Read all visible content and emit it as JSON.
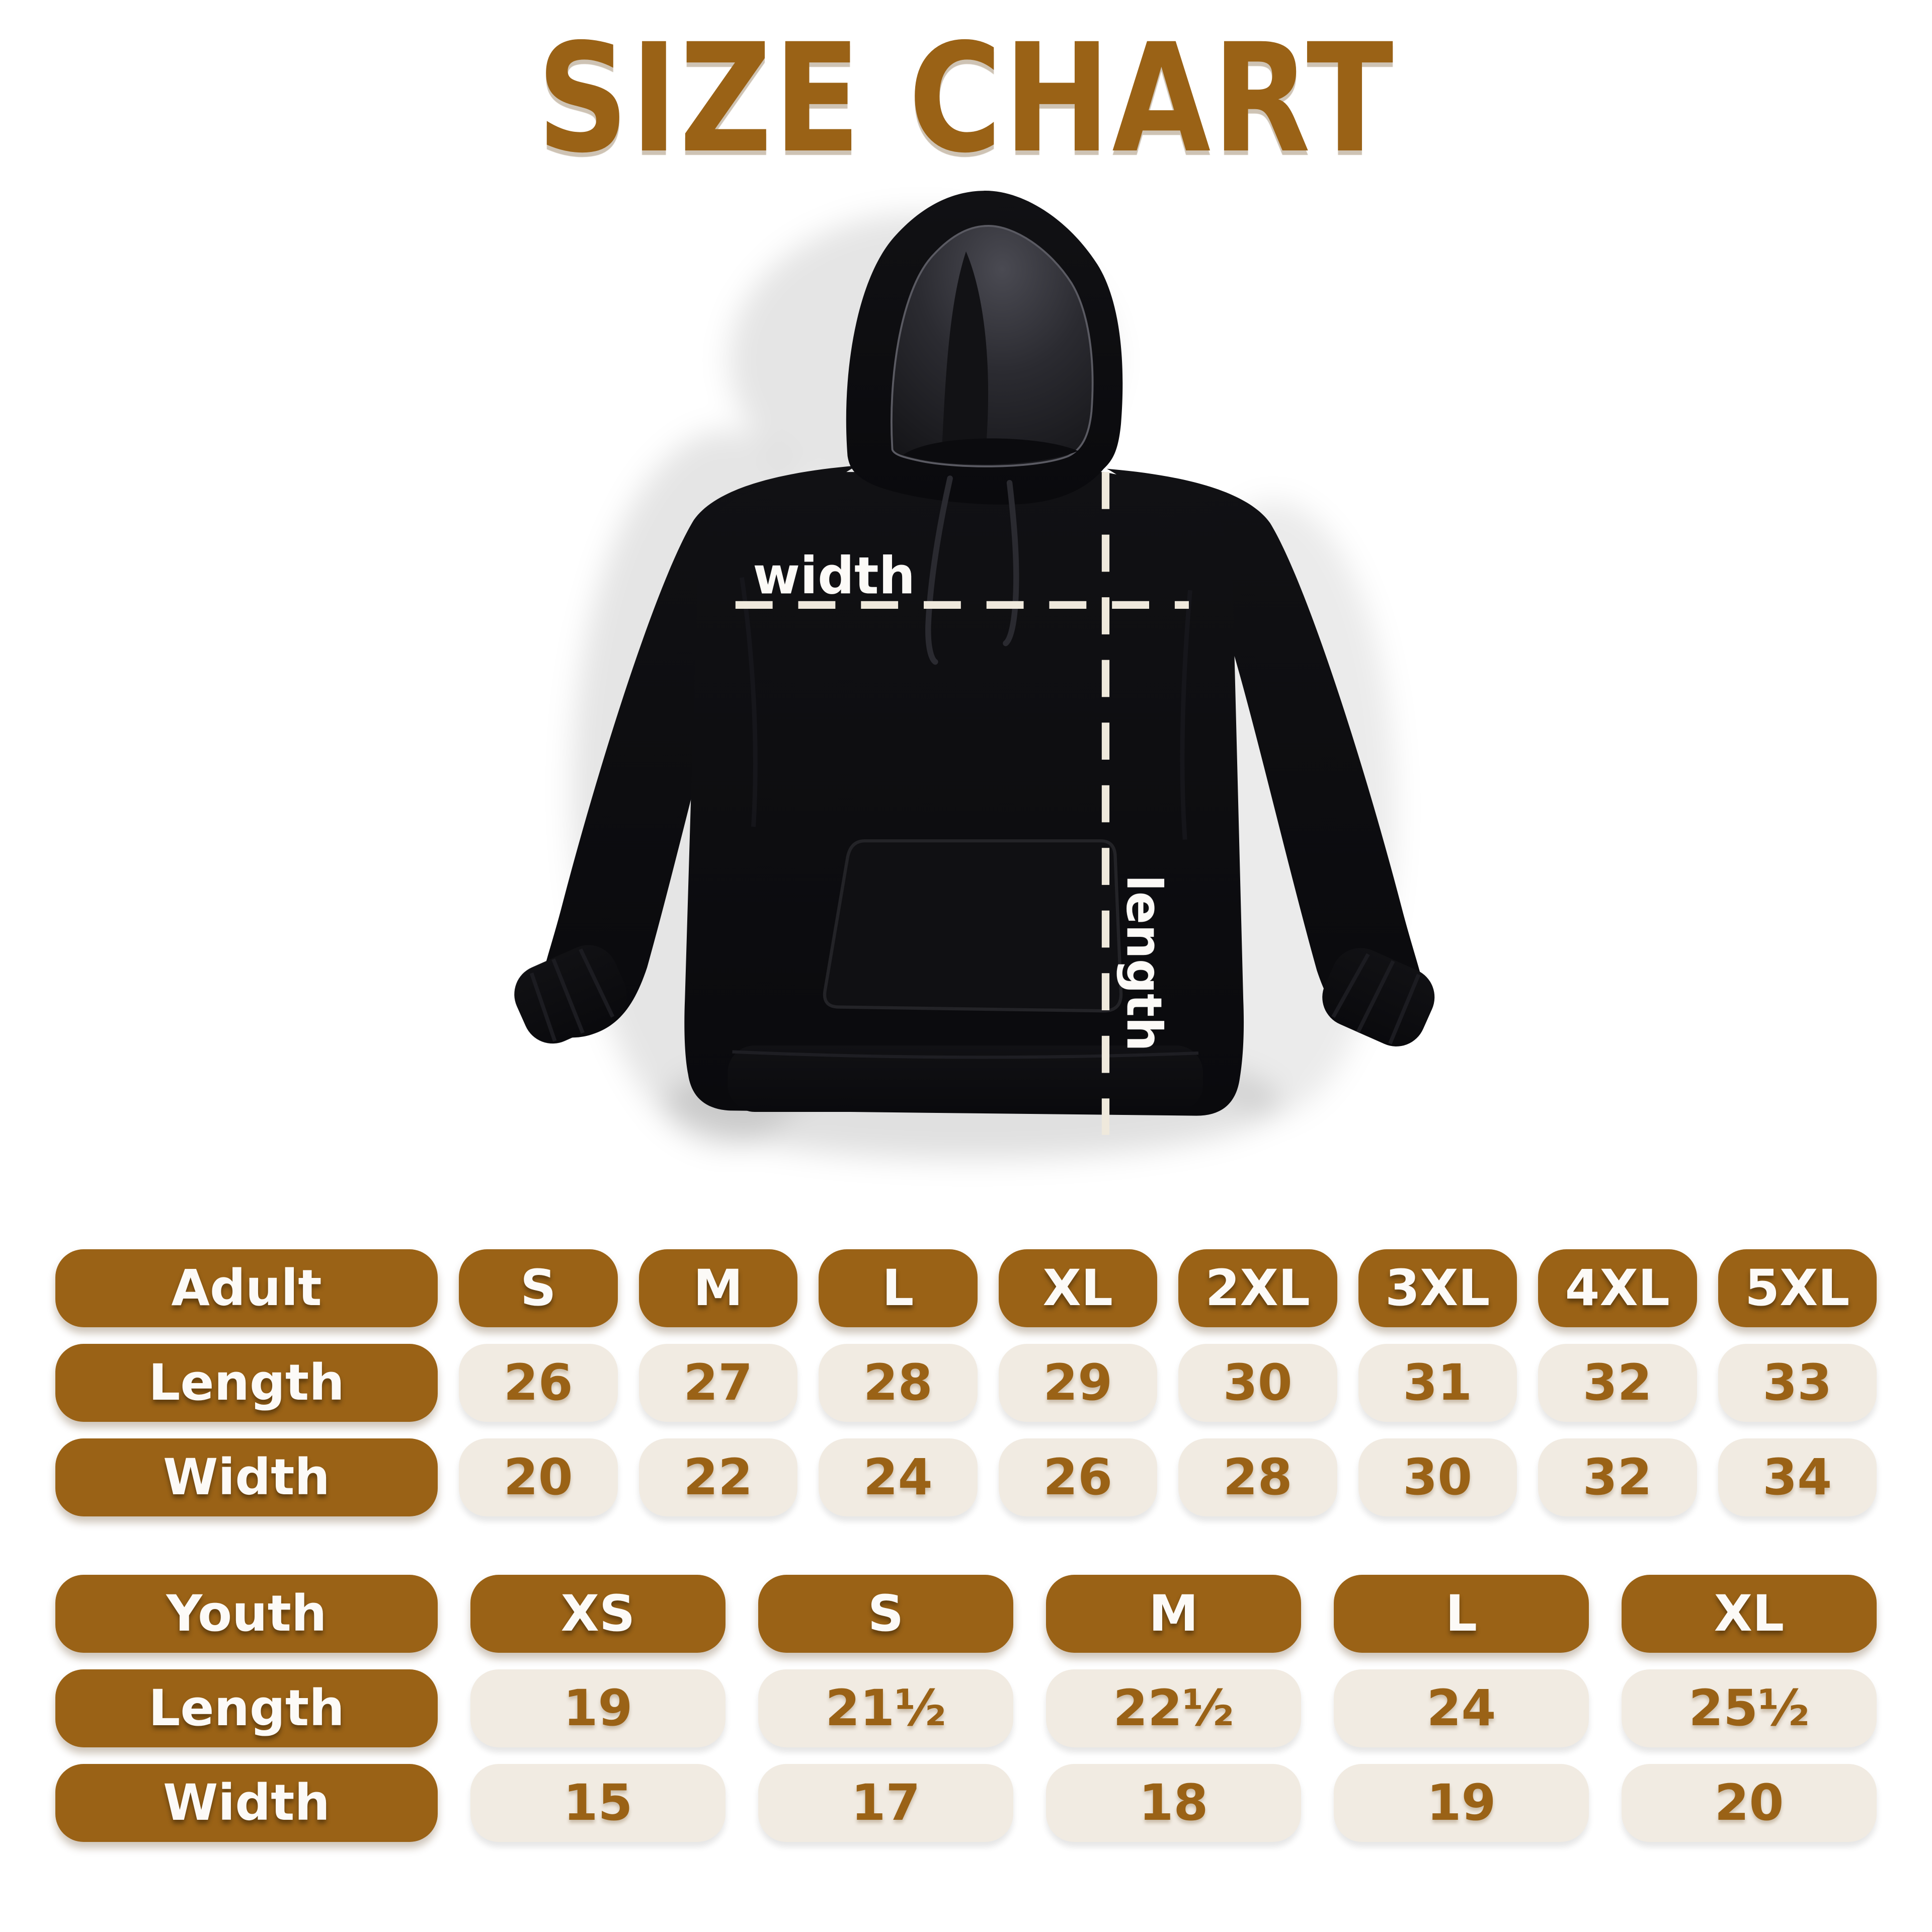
{
  "title": "SIZE CHART",
  "figure": {
    "garment": "black pullover hoodie flat lay",
    "width_label": "width",
    "length_label": "length"
  },
  "colors": {
    "brown": "#9A6216",
    "beige": "#F1EBE2",
    "dash_cream": "#EFE9DC",
    "label_white": "#FCFAF7",
    "hoodie_black": "#0C0C0F",
    "background": "#FFFFFF"
  },
  "tables": [
    {
      "name": "adult",
      "header": [
        "Adult",
        "S",
        "M",
        "L",
        "XL",
        "2XL",
        "3XL",
        "4XL",
        "5XL"
      ],
      "rows": [
        {
          "label": "Length",
          "values": [
            "26",
            "27",
            "28",
            "29",
            "30",
            "31",
            "32",
            "33"
          ]
        },
        {
          "label": "Width",
          "values": [
            "20",
            "22",
            "24",
            "26",
            "28",
            "30",
            "32",
            "34"
          ]
        }
      ]
    },
    {
      "name": "youth",
      "header": [
        "Youth",
        "XS",
        "S",
        "M",
        "L",
        "XL"
      ],
      "rows": [
        {
          "label": "Length",
          "values": [
            "19",
            "21½",
            "22½",
            "24",
            "25½"
          ]
        },
        {
          "label": "Width",
          "values": [
            "15",
            "17",
            "18",
            "19",
            "20"
          ]
        }
      ]
    }
  ],
  "chart_data": [
    {
      "type": "table",
      "title": "Adult sizes (inches)",
      "columns": [
        "Adult",
        "S",
        "M",
        "L",
        "XL",
        "2XL",
        "3XL",
        "4XL",
        "5XL"
      ],
      "rows": [
        [
          "Length",
          26,
          27,
          28,
          29,
          30,
          31,
          32,
          33
        ],
        [
          "Width",
          20,
          22,
          24,
          26,
          28,
          30,
          32,
          34
        ]
      ]
    },
    {
      "type": "table",
      "title": "Youth sizes (inches)",
      "columns": [
        "Youth",
        "XS",
        "S",
        "M",
        "L",
        "XL"
      ],
      "rows": [
        [
          "Length",
          19,
          21.5,
          22.5,
          24,
          25.5
        ],
        [
          "Width",
          15,
          17,
          18,
          19,
          20
        ]
      ]
    }
  ]
}
